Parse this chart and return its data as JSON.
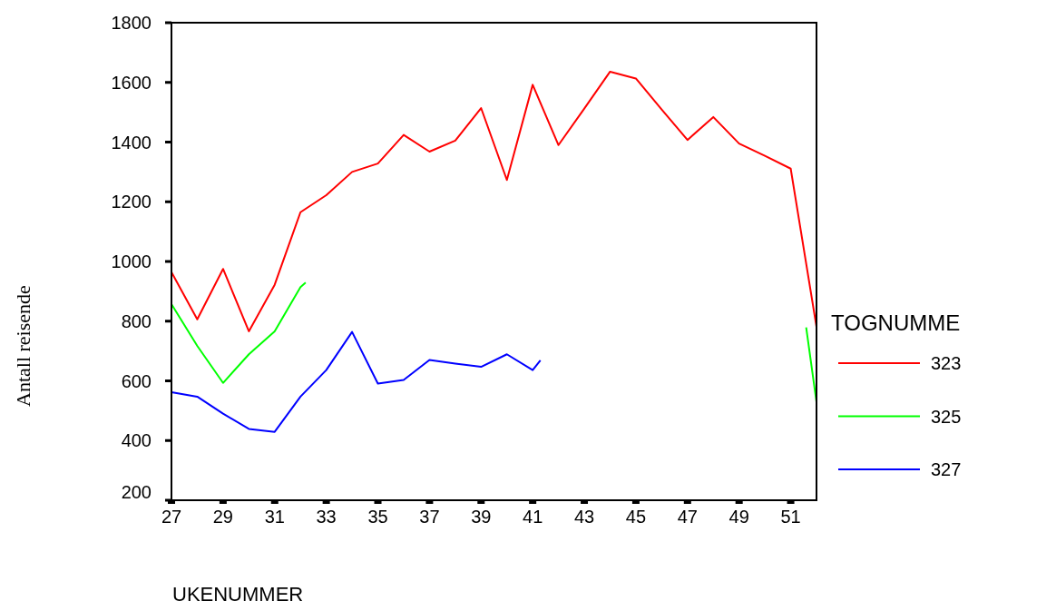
{
  "chart_data": {
    "type": "line",
    "xlabel": "UKENUMMER",
    "ylabel": "Antall reisende",
    "legend_title": "TOGNUMME",
    "legend": "right",
    "xlim": [
      27,
      52
    ],
    "xticks": [
      27,
      29,
      31,
      33,
      35,
      37,
      39,
      41,
      43,
      45,
      47,
      49,
      51
    ],
    "ylim": [
      200,
      1800
    ],
    "yticks": [
      200,
      400,
      600,
      800,
      1000,
      1200,
      1400,
      1600,
      1800
    ],
    "grid": false,
    "marker": "none",
    "line_style": "solid",
    "series": [
      {
        "name": "323",
        "color": "#ff0000",
        "x": [
          27,
          28,
          29,
          30,
          31,
          32,
          33,
          34,
          35,
          36,
          37,
          38,
          39,
          40,
          41,
          42,
          43,
          44,
          45,
          46,
          47,
          48,
          49,
          50,
          51,
          52
        ],
        "values": [
          964,
          806,
          975,
          766,
          922,
          1165,
          1222,
          1300,
          1328,
          1424,
          1368,
          1405,
          1514,
          1273,
          1592,
          1390,
          1512,
          1636,
          1613,
          1509,
          1407,
          1484,
          1395,
          1354,
          1311,
          781
        ]
      },
      {
        "name": "325",
        "color": "#00ff00",
        "x": [
          27,
          28,
          29,
          30,
          31,
          32,
          32.2,
          40,
          51.6,
          52
        ],
        "values": [
          857,
          717,
          593,
          689,
          766,
          914,
          929,
          null,
          779,
          529
        ]
      },
      {
        "name": "327",
        "color": "#0000ff",
        "x": [
          27,
          28,
          29,
          30,
          31,
          32,
          33,
          34,
          35,
          36,
          37,
          38,
          39,
          40,
          41,
          41.3
        ],
        "values": [
          562,
          547,
          490,
          439,
          429,
          547,
          636,
          764,
          591,
          603,
          670,
          658,
          647,
          689,
          636,
          669
        ]
      }
    ]
  }
}
